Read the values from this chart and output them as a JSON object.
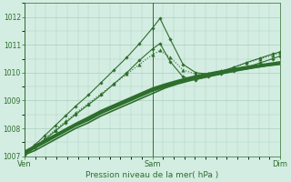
{
  "title": "Pression niveau de la mer( hPa )",
  "bg_color": "#d4ede2",
  "grid_color": "#aacfbe",
  "line_color": "#2d6e2d",
  "ylim": [
    1007.0,
    1012.5
  ],
  "yticks": [
    1007,
    1008,
    1009,
    1010,
    1011,
    1012
  ],
  "xtick_labels": [
    "Ven",
    "Sam",
    "Dim"
  ],
  "xtick_pos": [
    0.0,
    0.5,
    1.0
  ],
  "series": [
    {
      "x": [
        0.0,
        0.04,
        0.08,
        0.12,
        0.16,
        0.2,
        0.25,
        0.3,
        0.35,
        0.4,
        0.45,
        0.5,
        0.55,
        0.6,
        0.65,
        0.7,
        0.75,
        0.8,
        0.85,
        0.9,
        0.95,
        1.0
      ],
      "y": [
        1007.05,
        1007.2,
        1007.4,
        1007.6,
        1007.8,
        1008.0,
        1008.2,
        1008.45,
        1008.65,
        1008.85,
        1009.05,
        1009.25,
        1009.45,
        1009.6,
        1009.72,
        1009.83,
        1009.93,
        1010.02,
        1010.1,
        1010.18,
        1010.25,
        1010.3
      ],
      "marker": null,
      "lw": 1.2,
      "ls": "-"
    },
    {
      "x": [
        0.0,
        0.04,
        0.08,
        0.12,
        0.16,
        0.2,
        0.25,
        0.3,
        0.35,
        0.4,
        0.45,
        0.5,
        0.55,
        0.6,
        0.65,
        0.7,
        0.75,
        0.8,
        0.85,
        0.9,
        0.95,
        1.0
      ],
      "y": [
        1007.1,
        1007.3,
        1007.5,
        1007.7,
        1007.9,
        1008.1,
        1008.3,
        1008.55,
        1008.75,
        1008.95,
        1009.15,
        1009.35,
        1009.5,
        1009.65,
        1009.77,
        1009.88,
        1009.97,
        1010.05,
        1010.13,
        1010.2,
        1010.27,
        1010.33
      ],
      "marker": null,
      "lw": 1.8,
      "ls": "-"
    },
    {
      "x": [
        0.0,
        0.04,
        0.08,
        0.12,
        0.16,
        0.2,
        0.25,
        0.3,
        0.35,
        0.4,
        0.45,
        0.5,
        0.55,
        0.6,
        0.65,
        0.7,
        0.75,
        0.8,
        0.85,
        0.9,
        0.95,
        1.0
      ],
      "y": [
        1007.15,
        1007.35,
        1007.55,
        1007.75,
        1007.95,
        1008.15,
        1008.38,
        1008.62,
        1008.82,
        1009.02,
        1009.22,
        1009.42,
        1009.57,
        1009.7,
        1009.82,
        1009.92,
        1010.01,
        1010.09,
        1010.17,
        1010.24,
        1010.3,
        1010.37
      ],
      "marker": null,
      "lw": 2.2,
      "ls": "-"
    },
    {
      "x": [
        0.0,
        0.04,
        0.08,
        0.12,
        0.16,
        0.2,
        0.25,
        0.3,
        0.35,
        0.4,
        0.45,
        0.5,
        0.53,
        0.57,
        0.62,
        0.67,
        0.72,
        0.77,
        0.82,
        0.87,
        0.92,
        0.97,
        1.0
      ],
      "y": [
        1007.05,
        1007.3,
        1007.6,
        1007.9,
        1008.2,
        1008.5,
        1008.85,
        1009.2,
        1009.6,
        1010.0,
        1010.45,
        1010.85,
        1011.05,
        1010.4,
        1009.85,
        1009.75,
        1009.85,
        1009.95,
        1010.05,
        1010.2,
        1010.35,
        1010.5,
        1010.6
      ],
      "marker": "D",
      "ms": 1.8,
      "lw": 0.8,
      "ls": "-"
    },
    {
      "x": [
        0.0,
        0.04,
        0.08,
        0.12,
        0.16,
        0.2,
        0.25,
        0.3,
        0.35,
        0.4,
        0.45,
        0.5,
        0.53,
        0.57,
        0.62,
        0.67,
        0.72,
        0.77,
        0.82,
        0.87,
        0.92,
        0.97,
        1.0
      ],
      "y": [
        1007.1,
        1007.4,
        1007.75,
        1008.1,
        1008.45,
        1008.8,
        1009.2,
        1009.65,
        1010.1,
        1010.55,
        1011.05,
        1011.6,
        1011.95,
        1011.2,
        1010.3,
        1010.0,
        1009.95,
        1010.05,
        1010.2,
        1010.37,
        1010.52,
        1010.67,
        1010.75
      ],
      "marker": "D",
      "ms": 1.8,
      "lw": 0.8,
      "ls": "-"
    },
    {
      "x": [
        0.0,
        0.04,
        0.08,
        0.12,
        0.16,
        0.2,
        0.25,
        0.3,
        0.35,
        0.4,
        0.45,
        0.5,
        0.53,
        0.57,
        0.62,
        0.67,
        0.72,
        0.77,
        0.82,
        0.87,
        0.92,
        0.97,
        1.0
      ],
      "y": [
        1007.08,
        1007.35,
        1007.65,
        1007.95,
        1008.25,
        1008.55,
        1008.9,
        1009.25,
        1009.6,
        1009.95,
        1010.3,
        1010.65,
        1010.8,
        1010.55,
        1010.1,
        1009.95,
        1009.95,
        1010.05,
        1010.2,
        1010.35,
        1010.5,
        1010.62,
        1010.7
      ],
      "marker": "^",
      "ms": 2.5,
      "lw": 0.8,
      "ls": ":"
    }
  ]
}
